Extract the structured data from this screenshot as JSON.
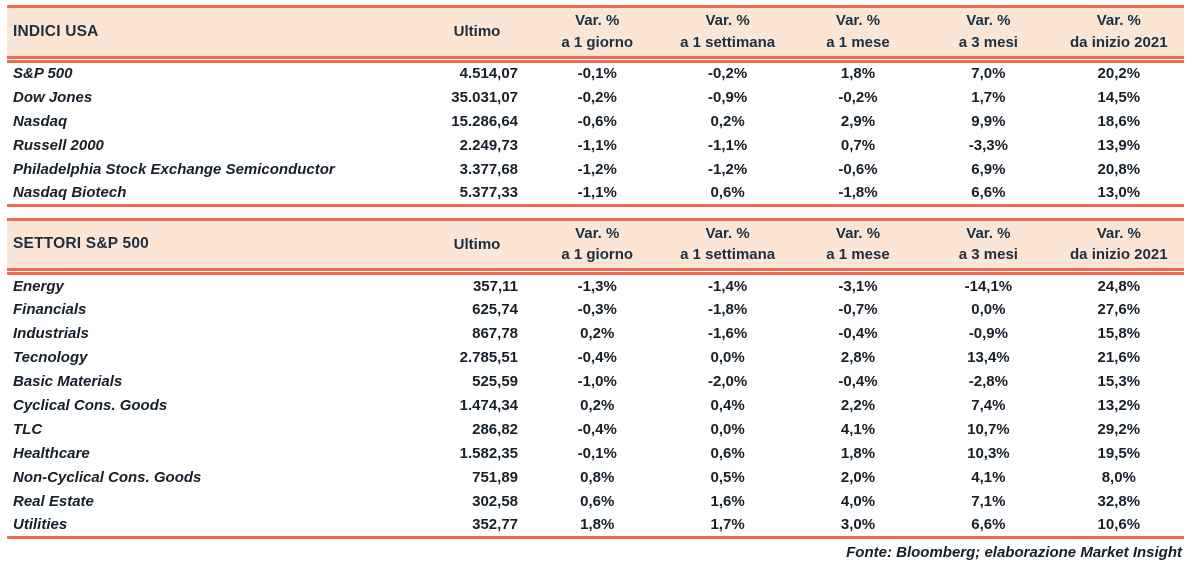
{
  "colors": {
    "accent": "#f2684d",
    "header_bg": "#fbe6d6",
    "header_text": "#1c2f3e",
    "body_text": "#16202a"
  },
  "tables": [
    {
      "title": "INDICI USA",
      "ultimo_label": "Ultimo",
      "var_cols": [
        {
          "top": "Var. %",
          "bottom": "a 1 giorno"
        },
        {
          "top": "Var. %",
          "bottom": "a 1 settimana"
        },
        {
          "top": "Var. %",
          "bottom": "a 1 mese"
        },
        {
          "top": "Var. %",
          "bottom": "a 3 mesi"
        },
        {
          "top": "Var. %",
          "bottom": "da inizio 2021"
        }
      ],
      "rows": [
        {
          "name": "S&P 500",
          "ultimo": "4.514,07",
          "vals": [
            "-0,1%",
            "-0,2%",
            "1,8%",
            "7,0%",
            "20,2%"
          ]
        },
        {
          "name": "Dow Jones",
          "ultimo": "35.031,07",
          "vals": [
            "-0,2%",
            "-0,9%",
            "-0,2%",
            "1,7%",
            "14,5%"
          ]
        },
        {
          "name": "Nasdaq",
          "ultimo": "15.286,64",
          "vals": [
            "-0,6%",
            "0,2%",
            "2,9%",
            "9,9%",
            "18,6%"
          ]
        },
        {
          "name": "Russell 2000",
          "ultimo": "2.249,73",
          "vals": [
            "-1,1%",
            "-1,1%",
            "0,7%",
            "-3,3%",
            "13,9%"
          ]
        },
        {
          "name": "Philadelphia Stock Exchange Semiconductor",
          "ultimo": "3.377,68",
          "vals": [
            "-1,2%",
            "-1,2%",
            "-0,6%",
            "6,9%",
            "20,8%"
          ]
        },
        {
          "name": "Nasdaq Biotech",
          "ultimo": "5.377,33",
          "vals": [
            "-1,1%",
            "0,6%",
            "-1,8%",
            "6,6%",
            "13,0%"
          ]
        }
      ]
    },
    {
      "title": "SETTORI S&P 500",
      "ultimo_label": "Ultimo",
      "var_cols": [
        {
          "top": "Var. %",
          "bottom": "a 1 giorno"
        },
        {
          "top": "Var. %",
          "bottom": "a 1 settimana"
        },
        {
          "top": "Var. %",
          "bottom": "a 1 mese"
        },
        {
          "top": "Var. %",
          "bottom": "a 3 mesi"
        },
        {
          "top": "Var. %",
          "bottom": "da inizio 2021"
        }
      ],
      "rows": [
        {
          "name": "Energy",
          "ultimo": "357,11",
          "vals": [
            "-1,3%",
            "-1,4%",
            "-3,1%",
            "-14,1%",
            "24,8%"
          ]
        },
        {
          "name": "Financials",
          "ultimo": "625,74",
          "vals": [
            "-0,3%",
            "-1,8%",
            "-0,7%",
            "0,0%",
            "27,6%"
          ]
        },
        {
          "name": "Industrials",
          "ultimo": "867,78",
          "vals": [
            "0,2%",
            "-1,6%",
            "-0,4%",
            "-0,9%",
            "15,8%"
          ]
        },
        {
          "name": "Tecnology",
          "ultimo": "2.785,51",
          "vals": [
            "-0,4%",
            "0,0%",
            "2,8%",
            "13,4%",
            "21,6%"
          ]
        },
        {
          "name": "Basic Materials",
          "ultimo": "525,59",
          "vals": [
            "-1,0%",
            "-2,0%",
            "-0,4%",
            "-2,8%",
            "15,3%"
          ]
        },
        {
          "name": "Cyclical Cons. Goods",
          "ultimo": "1.474,34",
          "vals": [
            "0,2%",
            "0,4%",
            "2,2%",
            "7,4%",
            "13,2%"
          ]
        },
        {
          "name": "TLC",
          "ultimo": "286,82",
          "vals": [
            "-0,4%",
            "0,0%",
            "4,1%",
            "10,7%",
            "29,2%"
          ]
        },
        {
          "name": "Healthcare",
          "ultimo": "1.582,35",
          "vals": [
            "-0,1%",
            "0,6%",
            "1,8%",
            "10,3%",
            "19,5%"
          ]
        },
        {
          "name": "Non-Cyclical Cons. Goods",
          "ultimo": "751,89",
          "vals": [
            "0,8%",
            "0,5%",
            "2,0%",
            "4,1%",
            "8,0%"
          ]
        },
        {
          "name": "Real Estate",
          "ultimo": "302,58",
          "vals": [
            "0,6%",
            "1,6%",
            "4,0%",
            "7,1%",
            "32,8%"
          ]
        },
        {
          "name": "Utilities",
          "ultimo": "352,77",
          "vals": [
            "1,8%",
            "1,7%",
            "3,0%",
            "6,6%",
            "10,6%"
          ]
        }
      ]
    }
  ],
  "footer": {
    "source": "Fonte: Bloomberg; elaborazione Market Insight"
  }
}
